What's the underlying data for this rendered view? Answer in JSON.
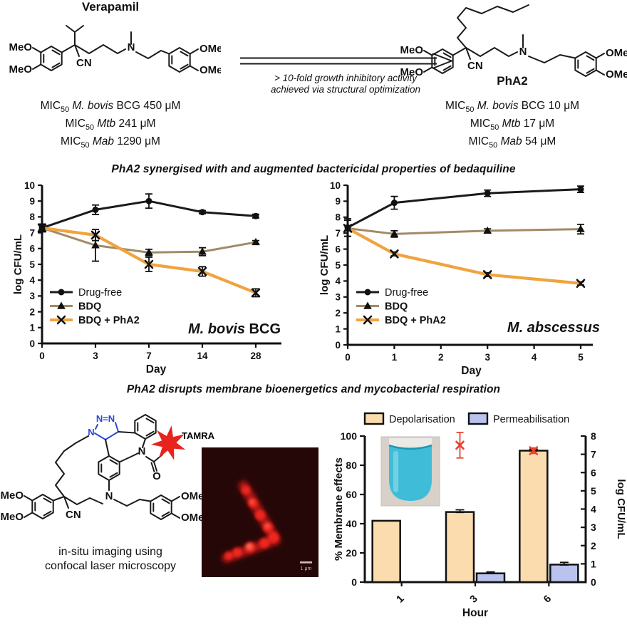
{
  "top": {
    "compounds": [
      {
        "name": "Verapamil",
        "mic": [
          {
            "prefix": "MIC",
            "sub": "50",
            "species": "M. bovis",
            "strain": " BCG ",
            "value": "450 μM"
          },
          {
            "prefix": "MIC",
            "sub": "50",
            "species": "Mtb",
            "strain": " ",
            "value": "241 μM"
          },
          {
            "prefix": "MIC",
            "sub": "50",
            "species": "Mab",
            "strain": " ",
            "value": "1290 μM"
          }
        ],
        "atom_labels": {
          "meo_top": "MeO",
          "meo_bottom": "MeO",
          "cn": "CN",
          "n": "N",
          "ome_top": "OMe",
          "ome_bottom": "OMe"
        }
      },
      {
        "name": "PhA2",
        "mic": [
          {
            "prefix": "MIC",
            "sub": "50",
            "species": "M. bovis",
            "strain": " BCG ",
            "value": "10 μM"
          },
          {
            "prefix": "MIC",
            "sub": "50",
            "species": "Mtb",
            "strain": " ",
            "value": "17 μM"
          },
          {
            "prefix": "MIC",
            "sub": "50",
            "species": "Mab",
            "strain": " ",
            "value": "54 μM"
          }
        ],
        "atom_labels": {
          "meo_top": "MeO",
          "meo_bottom": "MeO",
          "cn": "CN",
          "n": "N",
          "ome_top": "OMe",
          "ome_bottom": "OMe"
        }
      }
    ],
    "arrow_caption_1": "> 10-fold growth inhibitory activity",
    "arrow_caption_2": "achieved via structural optimization"
  },
  "sections": {
    "synergy_title": "PhA2 synergised with and augmented bactericidal properties of bedaquiline",
    "membrane_title": "PhA2 disrupts membrane bioenergetics and mycobacterial respiration"
  },
  "probe": {
    "tamra_label": "TAMRA",
    "caption_1": "in-situ imaging using",
    "caption_2": "confocal laser microscopy",
    "atom_labels": {
      "n_eq_n": "N=N",
      "n_triazole": "N",
      "meo_top": "MeO",
      "meo_bottom": "MeO",
      "cn": "CN",
      "n_center": "N",
      "n_azepine": "N",
      "o": "O",
      "ome_top": "OMe",
      "ome_bottom": "OMe"
    }
  },
  "microscopy": {
    "scale_label": "1 μm"
  },
  "colors": {
    "black": "#111111",
    "bdq_brown": "#A28A68",
    "pha2_orange": "#F0A33F",
    "bar_tan": "#FBDCAE",
    "bar_blue": "#B9C3EE",
    "cfu_red": "#E8432D",
    "star_red": "#E8221C",
    "triazole_blue": "#2B48D8"
  },
  "chart_data": [
    {
      "type": "line",
      "id": "bovis",
      "corner_label": {
        "italic": "M. bovis",
        "normal": " BCG"
      },
      "xlabel": "Day",
      "ylabel": "log CFU/mL",
      "ylim": [
        0,
        10
      ],
      "yticks": [
        0,
        1,
        2,
        3,
        4,
        5,
        6,
        7,
        8,
        9,
        10
      ],
      "x_scale": "categorical",
      "x": [
        0,
        3,
        7,
        14,
        28
      ],
      "x_tick_labels": [
        "0",
        "3",
        "7",
        "14",
        "28"
      ],
      "legend_position": "inside-bottom-left",
      "grid": false,
      "series": [
        {
          "name": "Drug-free",
          "marker": "circle",
          "color": "#1A1A1A",
          "bold_label": false,
          "values": [
            7.3,
            8.45,
            9.0,
            8.3,
            8.05
          ],
          "errors": [
            0.15,
            0.3,
            0.45,
            0.1,
            0.12
          ]
        },
        {
          "name": "BDQ",
          "marker": "triangle",
          "color": "#A28A68",
          "bold_label": true,
          "values": [
            7.3,
            6.2,
            5.75,
            5.8,
            6.4
          ],
          "errors": [
            0.25,
            1.0,
            0.2,
            0.25,
            0.1
          ]
        },
        {
          "name": "BDQ + PhA2",
          "marker": "x",
          "color": "#F0A33F",
          "bold_label": true,
          "values": [
            7.3,
            6.85,
            5.0,
            4.55,
            3.2
          ],
          "errors": [
            0.2,
            0.35,
            0.45,
            0.3,
            0.25
          ]
        }
      ]
    },
    {
      "type": "line",
      "id": "abscessus",
      "corner_label": {
        "italic": "M. abscessus",
        "normal": ""
      },
      "xlabel": "Day",
      "ylabel": "log CFU/mL",
      "ylim": [
        0,
        10
      ],
      "yticks": [
        0,
        1,
        2,
        3,
        4,
        5,
        6,
        7,
        8,
        9,
        10
      ],
      "x_scale": "linear",
      "xmax": 5,
      "xticks": [
        0,
        1,
        2,
        3,
        4,
        5
      ],
      "x": [
        0,
        1,
        3,
        5
      ],
      "legend_position": "inside-bottom-left",
      "grid": false,
      "series": [
        {
          "name": "Drug-free",
          "marker": "circle",
          "color": "#1A1A1A",
          "bold_label": false,
          "values": [
            7.35,
            8.9,
            9.5,
            9.75
          ],
          "errors": [
            0.55,
            0.4,
            0.2,
            0.2
          ]
        },
        {
          "name": "BDQ",
          "marker": "triangle",
          "color": "#A28A68",
          "bold_label": true,
          "values": [
            7.3,
            6.95,
            7.15,
            7.25
          ],
          "errors": [
            0.5,
            0.2,
            0.12,
            0.3
          ]
        },
        {
          "name": "BDQ + PhA2",
          "marker": "x",
          "color": "#F0A33F",
          "bold_label": true,
          "values": [
            7.3,
            5.7,
            4.4,
            3.85
          ],
          "errors": [
            0.15,
            0.12,
            0.12,
            0.1
          ]
        }
      ]
    },
    {
      "type": "bar",
      "id": "membrane",
      "xlabel": "Hour",
      "categories": [
        "1",
        "3",
        "6"
      ],
      "ylabel_left": "% Membrane effects",
      "ylim_left": [
        0,
        100
      ],
      "yticks_left": [
        0,
        20,
        40,
        60,
        80,
        100
      ],
      "ylabel_right": "log CFU/mL",
      "ylim_right": [
        0,
        8
      ],
      "yticks_right": [
        0,
        1,
        2,
        3,
        4,
        5,
        6,
        7,
        8
      ],
      "legend_position": "top",
      "grid": false,
      "series": [
        {
          "name": "Depolarisation",
          "color": "#FBDCAE",
          "values": [
            42,
            48,
            90
          ],
          "errors": [
            0,
            1.5,
            1
          ]
        },
        {
          "name": "Permeabilisation",
          "color": "#B9C3EE",
          "values": [
            0,
            6,
            12
          ],
          "errors": [
            0,
            1,
            1.5
          ]
        }
      ],
      "cfu_points": {
        "axis": "right",
        "color": "#E8432D",
        "marker": "x",
        "points": [
          {
            "category_index": 1,
            "value": 7.5,
            "error": 0.7
          },
          {
            "category_index": 2,
            "value": 7.2,
            "error": 0.15
          }
        ]
      }
    }
  ]
}
